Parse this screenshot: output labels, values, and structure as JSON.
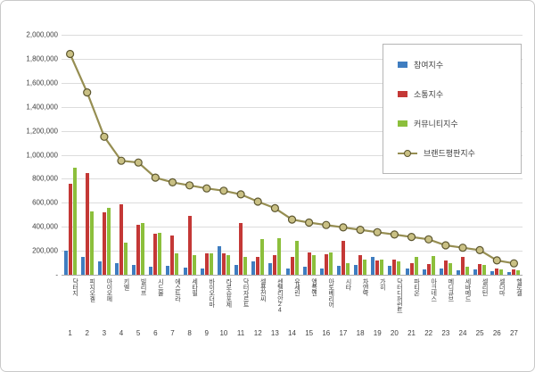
{
  "chart_data": {
    "type": "bar",
    "title": "",
    "grid": true,
    "legend_position": "upper-right",
    "categories": [
      "닥터지",
      "피지오겔",
      "아이오페",
      "키엘",
      "빌리프",
      "시드물",
      "에스트라",
      "세타필",
      "바이오더마",
      "라로슈포제",
      "닥터자르트",
      "셀퓨전씨",
      "센텔리안24",
      "유세린",
      "앰플엔",
      "아토베리어",
      "시타",
      "차앤박",
      "가히",
      "닥터디퍼런트",
      "파티온",
      "아크네스",
      "메디큐브",
      "세바메드",
      "셀리턴",
      "셀더마",
      "헬로셀"
    ],
    "ranks": [
      "1",
      "2",
      "3",
      "4",
      "5",
      "6",
      "7",
      "8",
      "9",
      "10",
      "11",
      "12",
      "13",
      "14",
      "15",
      "16",
      "17",
      "18",
      "19",
      "20",
      "21",
      "22",
      "23",
      "24",
      "25",
      "26",
      "27"
    ],
    "series": [
      {
        "key": "participation",
        "name": "참여지수",
        "color": "#3F7DC0",
        "values": [
          200000,
          150000,
          110000,
          95000,
          85000,
          70000,
          75000,
          60000,
          55000,
          235000,
          85000,
          115000,
          95000,
          55000,
          65000,
          55000,
          75000,
          85000,
          145000,
          75000,
          55000,
          45000,
          55000,
          40000,
          45000,
          30000,
          25000
        ]
      },
      {
        "key": "communication",
        "name": "소통지수",
        "color": "#C43836",
        "values": [
          760000,
          845000,
          520000,
          590000,
          420000,
          340000,
          330000,
          490000,
          175000,
          175000,
          430000,
          145000,
          160000,
          150000,
          185000,
          170000,
          280000,
          165000,
          120000,
          125000,
          100000,
          90000,
          120000,
          150000,
          90000,
          55000,
          45000
        ]
      },
      {
        "key": "community",
        "name": "커뮤니티지수",
        "color": "#8CBF3C",
        "values": [
          890000,
          530000,
          555000,
          265000,
          430000,
          350000,
          180000,
          165000,
          180000,
          160000,
          150000,
          300000,
          305000,
          280000,
          165000,
          185000,
          95000,
          130000,
          125000,
          110000,
          145000,
          155000,
          100000,
          65000,
          80000,
          45000,
          35000
        ]
      }
    ],
    "line_series": {
      "key": "reputation",
      "name": "브랜드평판지수",
      "line_color": "#968E52",
      "marker_fill": "#C9C084",
      "marker_stroke": "#5C562F",
      "values": [
        1840000,
        1520000,
        1150000,
        950000,
        935000,
        810000,
        770000,
        745000,
        720000,
        700000,
        670000,
        610000,
        555000,
        460000,
        435000,
        415000,
        395000,
        375000,
        355000,
        335000,
        315000,
        295000,
        245000,
        225000,
        205000,
        120000,
        95000
      ]
    },
    "y_axis": {
      "min": 0,
      "max": 2000000,
      "tick_interval": 200000,
      "tick_labels": [
        "2,000,000",
        "1,800,000",
        "1,600,000",
        "1,400,000",
        "1,200,000",
        "1,000,000",
        "800,000",
        "600,000",
        "400,000",
        "200,000",
        "-"
      ]
    }
  }
}
